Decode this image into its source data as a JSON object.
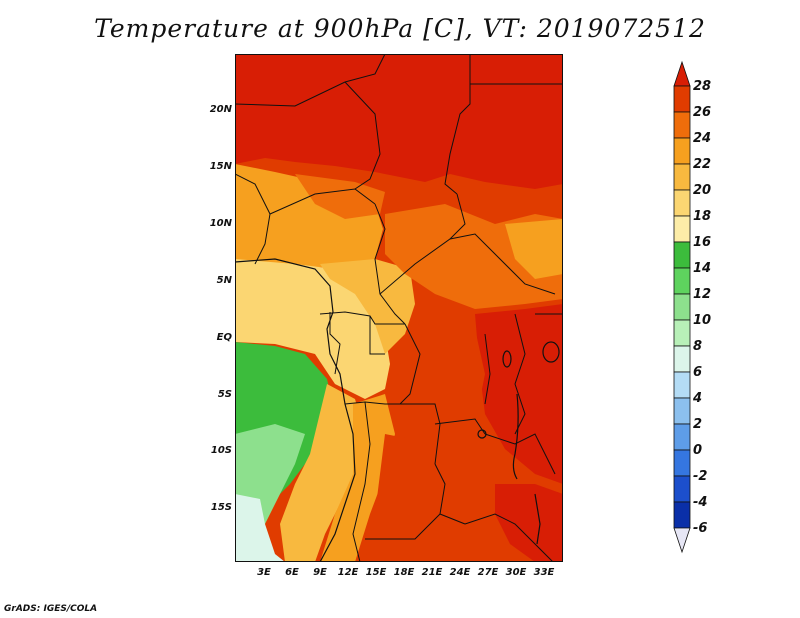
{
  "title": "Temperature at 900hPa [C], VT: 2019072512",
  "credit": "GrADS: IGES/COLA",
  "lat_labels": [
    "20N",
    "15N",
    "10N",
    "5N",
    "EQ",
    "5S",
    "10S",
    "15S"
  ],
  "lon_labels": [
    "3E",
    "6E",
    "9E",
    "12E",
    "15E",
    "18E",
    "21E",
    "24E",
    "27E",
    "30E",
    "33E"
  ],
  "colorbar": {
    "labels": [
      "28",
      "26",
      "24",
      "22",
      "20",
      "18",
      "16",
      "14",
      "12",
      "10",
      "8",
      "6",
      "4",
      "2",
      "0",
      "-2",
      "-4",
      "-6"
    ],
    "colors": [
      "#d81e05",
      "#e03c00",
      "#ef6d0b",
      "#f6a01f",
      "#f8b93f",
      "#fbd672",
      "#fdeda8",
      "#3cbc3c",
      "#5ed35e",
      "#8de08d",
      "#b8f0b8",
      "#dcf5ea",
      "#b4dcf5",
      "#8cc0ee",
      "#5e9de8",
      "#3576e0",
      "#1c4fcc",
      "#0a2fa8",
      "#0a1470"
    ]
  },
  "map_regions": [
    {
      "name": "sahara-hot-zone",
      "color": "#d81e05"
    },
    {
      "name": "sahel-zone",
      "color": "#e03c00"
    },
    {
      "name": "nigeria-cameroon-zone",
      "color": "#f6a01f"
    },
    {
      "name": "gulf-coast-zone",
      "color": "#fbd672"
    },
    {
      "name": "atlantic-cool-zone",
      "color": "#5ed35e"
    },
    {
      "name": "angola-coast-zone",
      "color": "#8de08d"
    },
    {
      "name": "congo-basin-zone",
      "color": "#e03c00"
    },
    {
      "name": "east-africa-zone",
      "color": "#d81e05"
    }
  ]
}
